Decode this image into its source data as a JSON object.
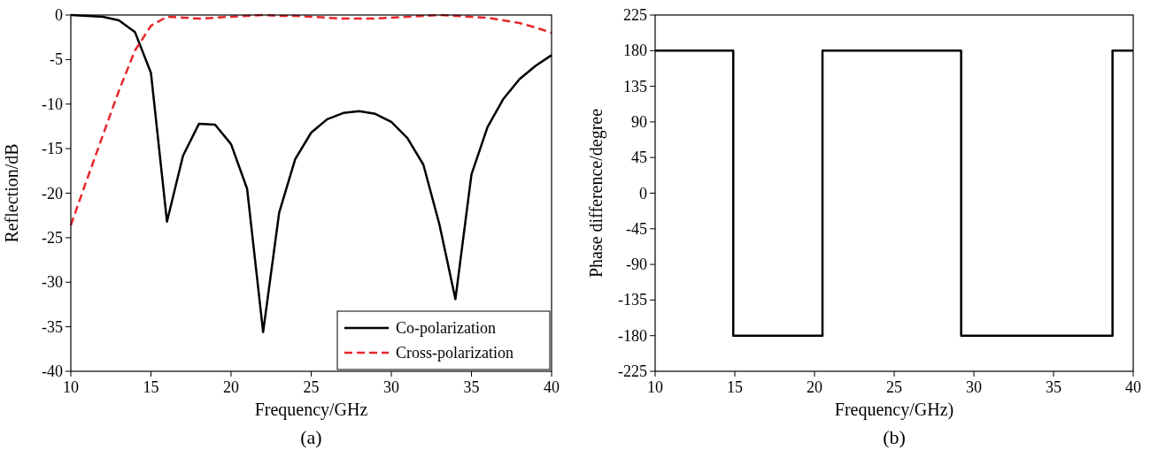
{
  "chart_data": [
    {
      "type": "line",
      "xlabel": "Frequency/GHz",
      "ylabel": "Reflection/dB",
      "annotations": [
        "(a)"
      ],
      "xlim": [
        10,
        40
      ],
      "xticks": [
        10,
        15,
        20,
        25,
        30,
        35,
        40
      ],
      "ylim": [
        -40,
        0
      ],
      "yticks": [
        -40,
        -35,
        -30,
        -25,
        -20,
        -15,
        -10,
        -5,
        0
      ],
      "grid": false,
      "legend": "bottom right",
      "x": [
        10,
        11,
        12,
        13,
        14,
        15,
        16,
        17,
        18,
        19,
        20,
        21,
        22,
        23,
        24,
        25,
        26,
        27,
        28,
        29,
        30,
        31,
        32,
        33,
        34,
        35,
        36,
        37,
        38,
        39,
        40
      ],
      "series": [
        {
          "name": "Co-polarization",
          "color": "#000000",
          "line_style": "solid",
          "values": [
            0,
            -0.1,
            -0.2,
            -0.6,
            -1.9,
            -6.5,
            -23.2,
            -15.8,
            -12.2,
            -12.3,
            -14.5,
            -19.5,
            -35.6,
            -22.2,
            -16.2,
            -13.2,
            -11.7,
            -11,
            -10.8,
            -11.1,
            -12,
            -13.8,
            -16.8,
            -23.5,
            -31.9,
            -17.9,
            -12.6,
            -9.4,
            -7.2,
            -5.7,
            -4.5
          ]
        },
        {
          "name": "Cross-polarization",
          "color": "#e8262b",
          "line_style": "dashed",
          "values": [
            -23.6,
            -18.5,
            -13.5,
            -8.5,
            -4,
            -1.2,
            -0.2,
            -0.3,
            -0.4,
            -0.3,
            -0.2,
            -0.1,
            0,
            -0.1,
            -0.1,
            -0.2,
            -0.3,
            -0.4,
            -0.4,
            -0.4,
            -0.3,
            -0.2,
            -0.1,
            0,
            -0.1,
            -0.2,
            -0.3,
            -0.6,
            -0.9,
            -1.4,
            -2
          ]
        }
      ]
    },
    {
      "type": "line",
      "xlabel": "Frequency/GHz)",
      "ylabel": "Phase difference/degree",
      "annotations": [
        "(b)"
      ],
      "xlim": [
        10,
        40
      ],
      "xticks": [
        10,
        15,
        20,
        25,
        30,
        35,
        40
      ],
      "ylim": [
        -225,
        225
      ],
      "yticks": [
        -225,
        -180,
        -135,
        -90,
        -45,
        0,
        45,
        90,
        135,
        180,
        225
      ],
      "grid": false,
      "legend": false,
      "series": [
        {
          "color": "#000000",
          "line_style": "solid",
          "x": [
            10,
            14.9,
            14.9,
            20.5,
            20.5,
            29.2,
            29.2,
            38.7,
            38.7,
            40
          ],
          "values": [
            180,
            180,
            -180,
            -180,
            180,
            180,
            -180,
            -180,
            180,
            180
          ]
        }
      ]
    }
  ]
}
